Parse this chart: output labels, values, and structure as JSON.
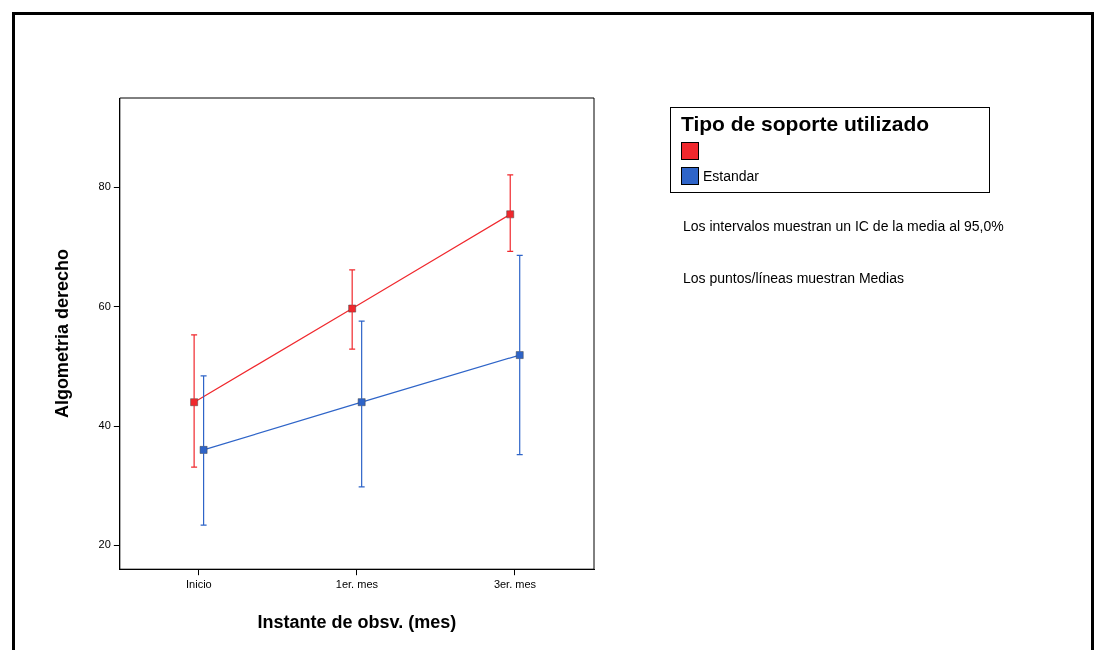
{
  "chart_data": {
    "type": "line",
    "xlabel": "Instante de obsv. (mes)",
    "ylabel": "Algometria derecho",
    "legend_title": "Tipo de soporte utilizado",
    "categories": [
      "Inicio",
      "1er. mes",
      "3er. mes"
    ],
    "series": [
      {
        "color": "#f0282d",
        "values": [
          44,
          59.7,
          75.5
        ],
        "errors": [
          [
            33.1,
            55.3
          ],
          [
            52.9,
            66.2
          ],
          [
            69.3,
            82.1
          ]
        ]
      },
      {
        "name": "Estandar",
        "color": "#2e64c8",
        "values": [
          36,
          44,
          51.9
        ],
        "errors": [
          [
            23.4,
            48.4
          ],
          [
            29.8,
            57.6
          ],
          [
            35.2,
            68.6
          ]
        ]
      }
    ],
    "ylim": [
      16,
      95
    ],
    "yticks": [
      20,
      40,
      60,
      80
    ],
    "grid": false,
    "legend": "right",
    "marker": "square",
    "line_style": "solid",
    "annotations": [
      "Los intervalos muestran un IC de la media al 95,0%",
      "Los puntos/líneas muestran Medias"
    ]
  }
}
